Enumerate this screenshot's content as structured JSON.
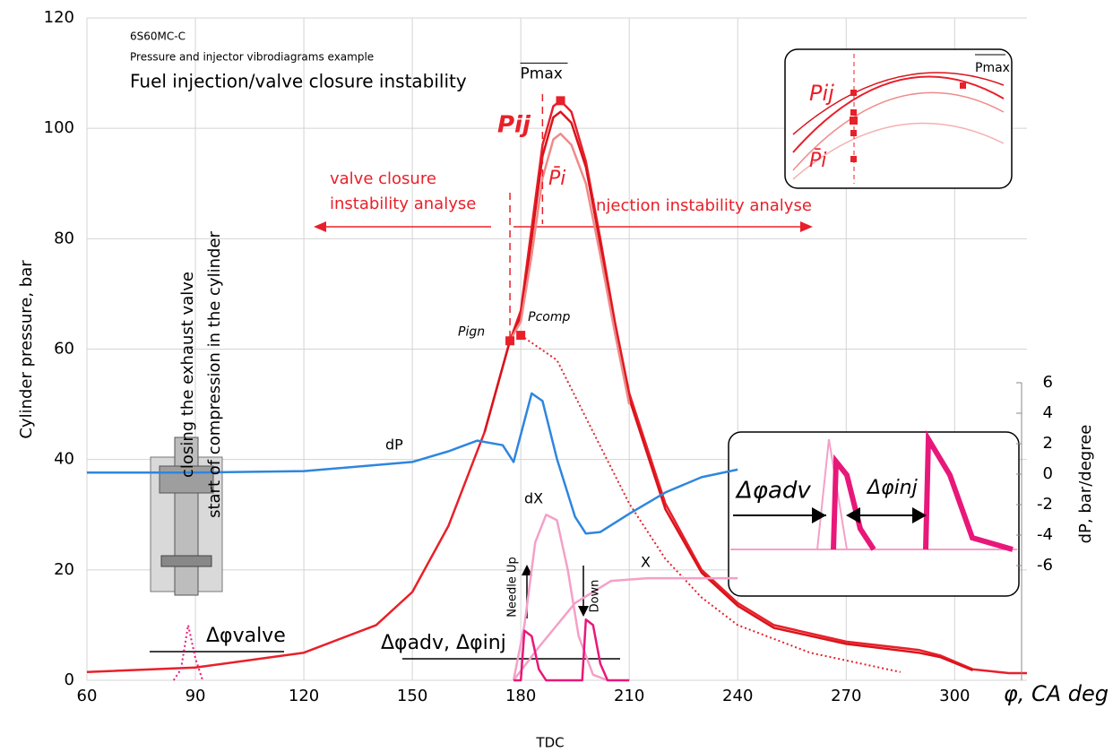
{
  "chart_data": {
    "type": "line",
    "title": "Fuel injection/valve closure instability",
    "subtitles": [
      "6S60MC-C",
      "Pressure and injector vibrodiagrams example"
    ],
    "x_label": "φ, CA deg",
    "x_sublabel": "TDC",
    "y_label": "Cylinder pressure, bar",
    "y2_label": "dP, bar/degree",
    "xlim": [
      60,
      320
    ],
    "xticks": [
      60,
      90,
      120,
      150,
      180,
      210,
      240,
      270,
      300
    ],
    "ylim": [
      0,
      120
    ],
    "yticks": [
      0,
      20,
      40,
      60,
      80,
      100,
      120
    ],
    "y2lim": [
      -6,
      6
    ],
    "y2ticks": [
      6,
      4,
      2,
      0,
      -2,
      -4,
      -6
    ],
    "grid": true,
    "series": [
      {
        "color": "#e8202a",
        "x": [
          60,
          90,
          120,
          140,
          150,
          160,
          170,
          177,
          180,
          183,
          186,
          189,
          191,
          194,
          198,
          202,
          206,
          210,
          220,
          230,
          240,
          250,
          270,
          290,
          296,
          305,
          315,
          320
        ],
        "values": [
          1.5,
          2.3,
          5,
          10,
          16,
          28,
          45,
          61.5,
          67,
          82,
          97,
          104,
          105,
          103,
          94,
          80,
          65,
          52,
          32,
          20,
          14,
          10,
          7,
          5.5,
          4.5,
          2,
          1.3,
          1.3
        ]
      },
      {
        "color": "#d9141b",
        "x": [
          170,
          177,
          180,
          183,
          186,
          189,
          191,
          194,
          198,
          202,
          206,
          210,
          220,
          230,
          240,
          250,
          270,
          290,
          296,
          305
        ],
        "values": [
          45,
          61.5,
          66,
          80,
          95,
          102,
          103,
          101,
          93,
          79,
          64,
          51,
          31,
          19.5,
          13.5,
          9.5,
          6.6,
          5,
          4.2,
          1.8
        ]
      },
      {
        "color": "#f08a8a",
        "x": [
          177,
          180,
          183,
          186,
          189,
          191,
          194,
          198,
          202,
          206,
          210
        ],
        "values": [
          61.5,
          65,
          77,
          91,
          98,
          99,
          97,
          90,
          77,
          63,
          50
        ]
      },
      {
        "color": "#e8202a",
        "style": "dotted",
        "x": [
          180,
          190,
          200,
          210,
          220,
          230,
          240,
          260,
          285
        ],
        "values": [
          62.5,
          58,
          45,
          32,
          22,
          15,
          10,
          5,
          1.5
        ]
      },
      {
        "name": "dP",
        "color": "#2e86de",
        "axis": "y2",
        "x": [
          60,
          90,
          120,
          150,
          160,
          168,
          175,
          178,
          181,
          183,
          186,
          190,
          195,
          198,
          202,
          210,
          220,
          230,
          240
        ],
        "values": [
          0.1,
          0.1,
          0.2,
          0.8,
          1.5,
          2.2,
          1.9,
          0.8,
          3.5,
          5.3,
          4.8,
          1,
          -2.8,
          -3.9,
          -3.8,
          -2.6,
          -1.2,
          -0.2,
          0.3
        ]
      },
      {
        "name": "dX",
        "color": "#f4a0c8",
        "x": [
          178,
          181,
          184,
          187,
          190,
          193,
          196,
          200,
          204
        ],
        "values": [
          0,
          10,
          25,
          30,
          29,
          20,
          8,
          1,
          0
        ]
      },
      {
        "name": "X",
        "color": "#f4a0c8",
        "x": [
          178,
          185,
          195,
          205,
          215,
          240
        ],
        "values": [
          0,
          6,
          14,
          18,
          18.5,
          18.5
        ]
      },
      {
        "color": "#e8187a",
        "x": [
          178,
          180,
          181,
          183,
          185,
          187,
          197,
          198,
          200,
          202,
          204,
          210
        ],
        "values": [
          0,
          0,
          9,
          8,
          2,
          0,
          0,
          11,
          10,
          3,
          0,
          0
        ]
      },
      {
        "color": "#e8187a",
        "style": "dotted",
        "x": [
          84,
          86,
          88,
          90,
          92
        ],
        "values": [
          0,
          2,
          10,
          4,
          0
        ]
      }
    ],
    "points": [
      {
        "label": "Pign",
        "x": 177,
        "y": 61.5
      },
      {
        "label": "Pcomp",
        "x": 180,
        "y": 62.5
      },
      {
        "label": "Pmax",
        "x": 191,
        "y": 105
      }
    ],
    "annotations": [
      "Pij",
      "P̄i",
      "valve closure",
      "instability analyse",
      "injection instability analyse",
      "dP",
      "dX",
      "X",
      "Needle Up",
      "Down",
      "Δφvalve",
      "Δφadv, Δφinj",
      "closing the exhaust valve",
      "start of compression in the cylinder",
      "Pij",
      "Pmax",
      "P̄i",
      "Δφadv",
      "Δφinj"
    ]
  }
}
